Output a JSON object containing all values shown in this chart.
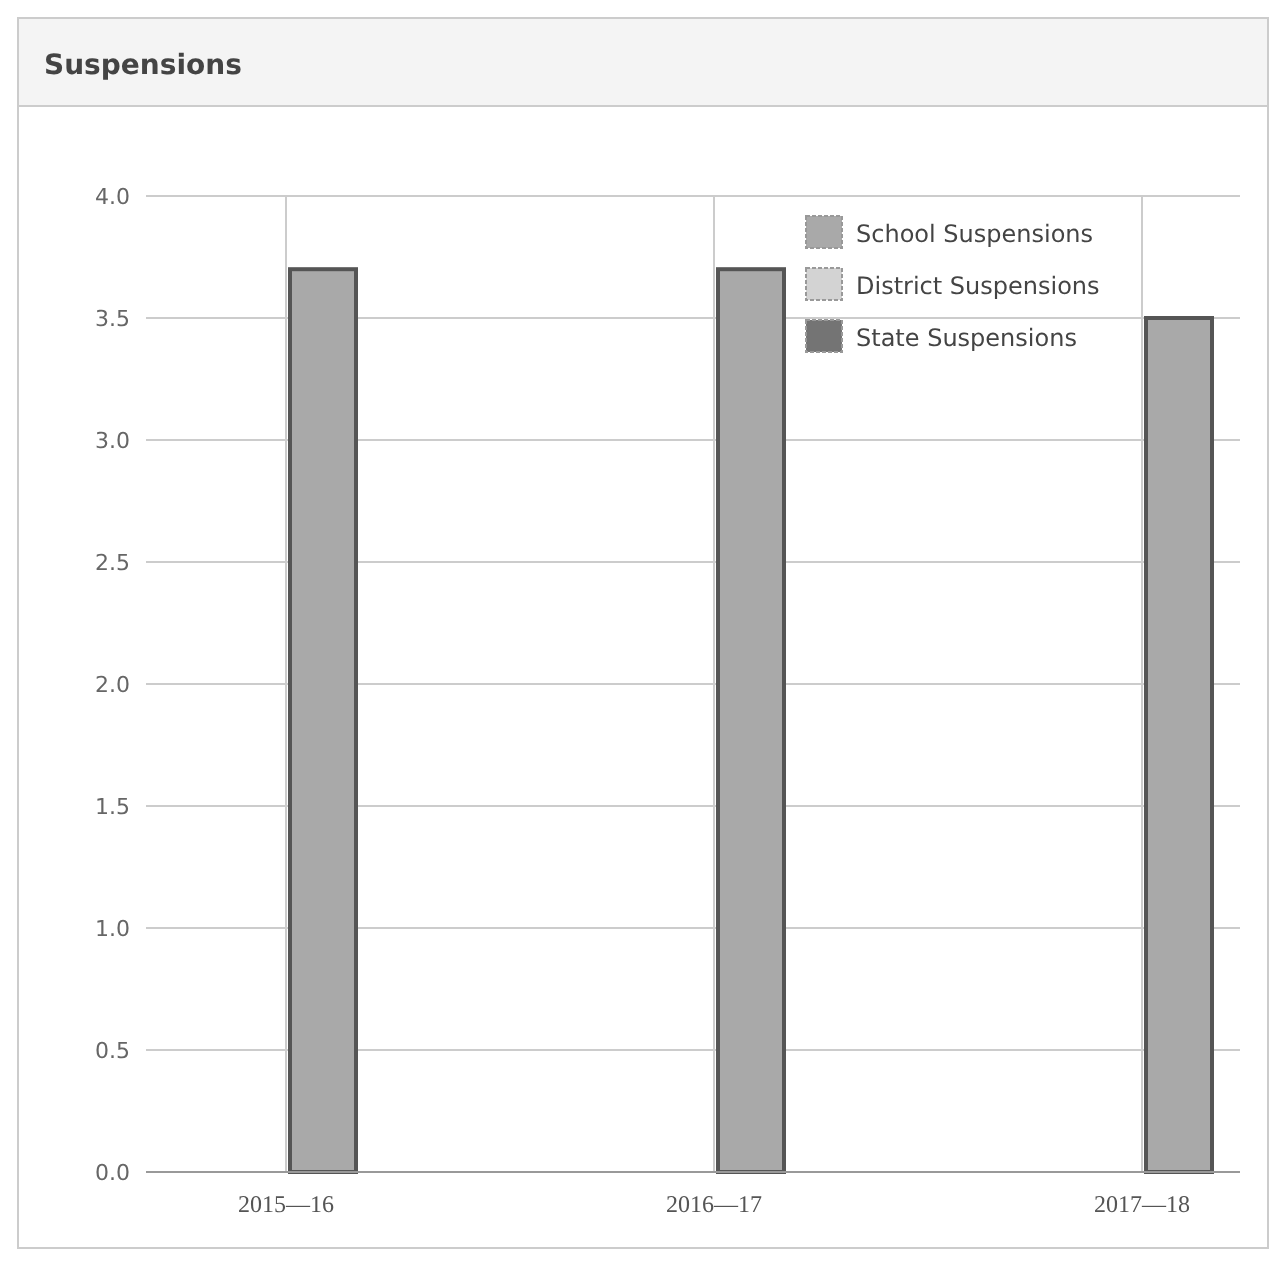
{
  "chart_data": {
    "type": "bar",
    "title": "Suspensions",
    "categories": [
      "2015—16",
      "2016—17",
      "2017—18"
    ],
    "series": [
      {
        "name": "School Suspensions",
        "color": "#a9a9a9",
        "values": [
          3.7,
          3.7,
          3.5
        ]
      },
      {
        "name": "District Suspensions",
        "color": "#d3d3d3",
        "values": [
          null,
          null,
          null
        ]
      },
      {
        "name": "State Suspensions",
        "color": "#747474",
        "values": [
          null,
          null,
          null
        ]
      }
    ],
    "ylim": [
      0,
      4
    ],
    "yticks": [
      {
        "value": 0,
        "label": "0.0"
      },
      {
        "value": 0.5,
        "label": "0.5"
      },
      {
        "value": 1,
        "label": "1.0"
      },
      {
        "value": 1.5,
        "label": "1.5"
      },
      {
        "value": 2,
        "label": "2.0"
      },
      {
        "value": 2.5,
        "label": "2.5"
      },
      {
        "value": 3,
        "label": "3.0"
      },
      {
        "value": 3.5,
        "label": "3.5"
      },
      {
        "value": 4,
        "label": "4.0"
      }
    ],
    "grid": true,
    "legend": "top right"
  }
}
